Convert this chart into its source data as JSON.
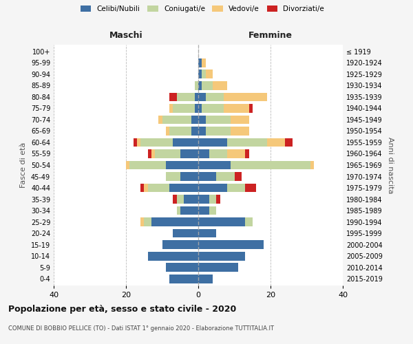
{
  "age_groups": [
    "0-4",
    "5-9",
    "10-14",
    "15-19",
    "20-24",
    "25-29",
    "30-34",
    "35-39",
    "40-44",
    "45-49",
    "50-54",
    "55-59",
    "60-64",
    "65-69",
    "70-74",
    "75-79",
    "80-84",
    "85-89",
    "90-94",
    "95-99",
    "100+"
  ],
  "birth_years": [
    "2015-2019",
    "2010-2014",
    "2005-2009",
    "2000-2004",
    "1995-1999",
    "1990-1994",
    "1985-1989",
    "1980-1984",
    "1975-1979",
    "1970-1974",
    "1965-1969",
    "1960-1964",
    "1955-1959",
    "1950-1954",
    "1945-1949",
    "1940-1944",
    "1935-1939",
    "1930-1934",
    "1925-1929",
    "1920-1924",
    "≤ 1919"
  ],
  "colors": {
    "celibi": "#3e6fa3",
    "coniugati": "#c2d5a0",
    "vedovi": "#f5c87a",
    "divorziati": "#cc2222"
  },
  "maschi": {
    "celibi": [
      8,
      9,
      14,
      10,
      7,
      13,
      5,
      4,
      8,
      5,
      9,
      5,
      7,
      2,
      2,
      1,
      1,
      0,
      0,
      0,
      0
    ],
    "coniugati": [
      0,
      0,
      0,
      0,
      0,
      2,
      1,
      2,
      6,
      4,
      10,
      7,
      9,
      6,
      8,
      6,
      5,
      1,
      0,
      0,
      0
    ],
    "vedovi": [
      0,
      0,
      0,
      0,
      0,
      1,
      0,
      0,
      1,
      0,
      1,
      1,
      1,
      1,
      1,
      1,
      0,
      0,
      0,
      0,
      0
    ],
    "divorziati": [
      0,
      0,
      0,
      0,
      0,
      0,
      0,
      1,
      1,
      0,
      0,
      1,
      1,
      0,
      0,
      0,
      2,
      0,
      0,
      0,
      0
    ]
  },
  "femmine": {
    "celibi": [
      4,
      11,
      13,
      18,
      5,
      13,
      3,
      3,
      8,
      5,
      9,
      3,
      8,
      2,
      2,
      1,
      2,
      1,
      1,
      1,
      0
    ],
    "coniugati": [
      0,
      0,
      0,
      0,
      0,
      2,
      2,
      2,
      5,
      5,
      22,
      5,
      11,
      7,
      7,
      6,
      5,
      3,
      1,
      0,
      0
    ],
    "vedovi": [
      0,
      0,
      0,
      0,
      0,
      0,
      0,
      0,
      0,
      0,
      1,
      5,
      5,
      5,
      5,
      7,
      12,
      4,
      2,
      1,
      0
    ],
    "divorziati": [
      0,
      0,
      0,
      0,
      0,
      0,
      0,
      1,
      3,
      2,
      0,
      1,
      2,
      0,
      0,
      1,
      0,
      0,
      0,
      0,
      0
    ]
  },
  "xlim": 40,
  "title": "Popolazione per età, sesso e stato civile - 2020",
  "subtitle": "COMUNE DI BOBBIO PELLICE (TO) - Dati ISTAT 1° gennaio 2020 - Elaborazione TUTTITALIA.IT",
  "xlabel_maschi": "Maschi",
  "xlabel_femmine": "Femmine",
  "ylabel": "Fasce di età",
  "ylabel_right": "Anni di nascita",
  "bg_color": "#f5f5f5",
  "plot_bg": "#ffffff",
  "grid_color": "#bbbbbb"
}
